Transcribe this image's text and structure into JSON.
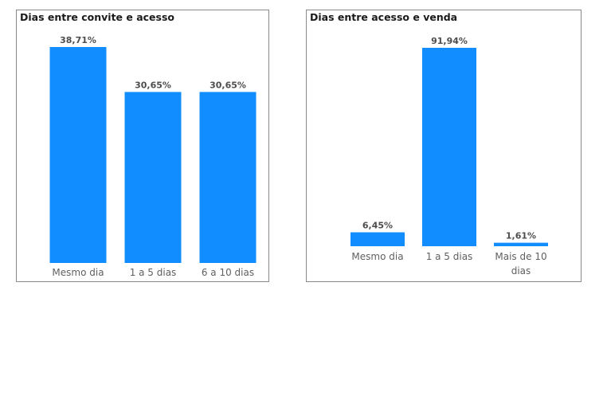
{
  "chart_data": [
    {
      "type": "bar",
      "title": "Dias entre convite e acesso",
      "categories": [
        "Mesmo dia",
        "1 a 5 dias",
        "6 a 10 dias"
      ],
      "values": [
        38.71,
        30.65,
        30.65
      ],
      "value_labels": [
        "38,71%",
        "30,65%",
        "30,65%"
      ],
      "unit": "%",
      "ylim": [
        0,
        38.71
      ],
      "grid": false,
      "bar_color": "#118DFF"
    },
    {
      "type": "bar",
      "title": "Dias entre acesso e venda",
      "categories": [
        "Mesmo dia",
        "1 a 5 dias",
        "Mais de 10 dias"
      ],
      "category_lines": [
        [
          "Mesmo dia"
        ],
        [
          "1 a 5 dias"
        ],
        [
          "Mais de 10",
          "dias"
        ]
      ],
      "values": [
        6.45,
        91.94,
        1.61
      ],
      "value_labels": [
        "6,45%",
        "91,94%",
        "1,61%"
      ],
      "unit": "%",
      "ylim": [
        0,
        91.94
      ],
      "grid": false,
      "bar_color": "#118DFF"
    }
  ]
}
